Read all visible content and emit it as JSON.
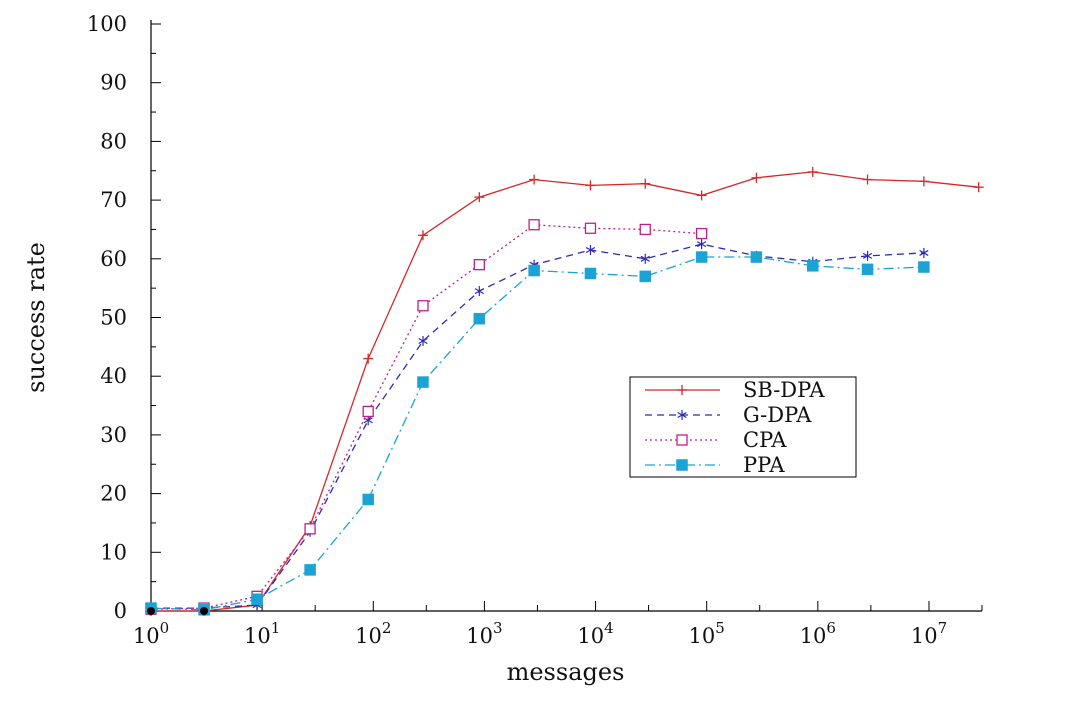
{
  "chart_data": {
    "type": "line",
    "title": "",
    "xlabel": "messages",
    "ylabel": "success rate",
    "x_scale": "log10",
    "xlim": [
      1,
      30000000
    ],
    "ylim": [
      0,
      100
    ],
    "grid": false,
    "legend_position": "center-right",
    "x_ticks": [
      {
        "value": 1,
        "base": "10",
        "exp": "0"
      },
      {
        "value": 10,
        "base": "10",
        "exp": "1"
      },
      {
        "value": 100,
        "base": "10",
        "exp": "2"
      },
      {
        "value": 1000,
        "base": "10",
        "exp": "3"
      },
      {
        "value": 10000,
        "base": "10",
        "exp": "4"
      },
      {
        "value": 100000,
        "base": "10",
        "exp": "5"
      },
      {
        "value": 1000000,
        "base": "10",
        "exp": "6"
      },
      {
        "value": 10000000,
        "base": "10",
        "exp": "7"
      }
    ],
    "y_ticks": [
      0,
      10,
      20,
      30,
      40,
      50,
      60,
      70,
      80,
      90,
      100
    ],
    "series": [
      {
        "name": "SB-DPA",
        "color": "#d62728",
        "dash": "",
        "marker": "plus",
        "x": [
          1,
          3,
          9,
          27,
          90,
          280,
          900,
          2800,
          9000,
          28000,
          90000,
          280000,
          900000,
          2800000,
          9000000,
          28000000
        ],
        "y": [
          0,
          0,
          1,
          14.5,
          43,
          64,
          70.5,
          73.5,
          72.5,
          72.8,
          70.8,
          73.8,
          74.8,
          73.5,
          73.2,
          72.2
        ]
      },
      {
        "name": "G-DPA",
        "color": "#2b2bb8",
        "dash": "7,5",
        "marker": "star",
        "x": [
          1,
          3,
          9,
          27,
          90,
          280,
          900,
          2800,
          9000,
          28000,
          90000,
          280000,
          900000,
          2800000,
          9000000
        ],
        "y": [
          0.5,
          0.5,
          1,
          13.5,
          32.5,
          46,
          54.5,
          59,
          61.5,
          60,
          62.5,
          60.5,
          59.5,
          60.5,
          61
        ]
      },
      {
        "name": "CPA",
        "color": "#c01f8a",
        "dash": "2,3",
        "marker": "square-open",
        "x": [
          1,
          3,
          9,
          27,
          90,
          280,
          900,
          2800,
          9000,
          28000,
          90000
        ],
        "y": [
          0.3,
          0.5,
          2.5,
          14,
          34,
          52,
          59,
          65.8,
          65.2,
          65,
          64.3
        ]
      },
      {
        "name": "PPA",
        "color": "#1aa3d4",
        "dash": "10,4,2,4",
        "marker": "square-filled",
        "x": [
          1,
          3,
          9,
          27,
          90,
          280,
          900,
          2800,
          9000,
          28000,
          90000,
          280000,
          900000,
          2800000,
          9000000
        ],
        "y": [
          0.5,
          0.2,
          2,
          7,
          19,
          39,
          49.8,
          58,
          57.5,
          57,
          60.3,
          60.3,
          58.8,
          58.2,
          58.6
        ]
      }
    ]
  }
}
